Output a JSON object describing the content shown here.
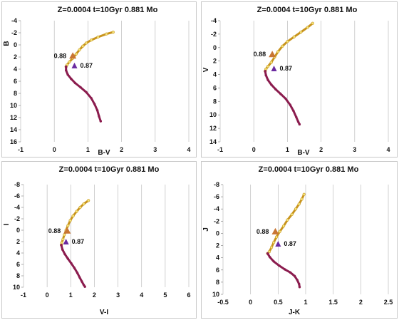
{
  "colors": {
    "upper_branch": "#c8941e",
    "point_fill": "#f3e37a",
    "lower_branch": "#8b1c4e",
    "arrow_088": "#c87533",
    "marker_087": "#6a2aa0",
    "grid": "#bdbdbd"
  },
  "chart_data": [
    {
      "type": "scatter",
      "title": "Z=0.0004   t=10Gyr   0.881 Mo",
      "xlabel": "B-V",
      "ylabel": "B",
      "xlim": [
        -1,
        4
      ],
      "ylim": [
        -4,
        16
      ],
      "y_inverted": true,
      "xticks": [
        "-1",
        "0",
        "1",
        "2",
        "3",
        "4"
      ],
      "yticks": [
        "-4",
        "-2",
        "0",
        "2",
        "4",
        "6",
        "8",
        "10",
        "12",
        "14",
        "16"
      ],
      "grid": true,
      "series": [
        {
          "color": "upper_branch",
          "points": [
            [
              1.75,
              -2.1
            ],
            [
              1.55,
              -1.8
            ],
            [
              1.3,
              -1.3
            ],
            [
              1.1,
              -0.8
            ],
            [
              0.95,
              -0.3
            ],
            [
              0.85,
              0.2
            ],
            [
              0.75,
              0.8
            ],
            [
              0.65,
              1.5
            ],
            [
              0.55,
              2.2
            ],
            [
              0.45,
              2.8
            ],
            [
              0.38,
              3.3
            ],
            [
              0.35,
              3.6
            ]
          ]
        },
        {
          "color": "lower_branch",
          "points": [
            [
              0.35,
              3.6
            ],
            [
              0.35,
              4.2
            ],
            [
              0.4,
              4.9
            ],
            [
              0.5,
              5.6
            ],
            [
              0.62,
              6.3
            ],
            [
              0.78,
              7.0
            ],
            [
              0.95,
              7.8
            ],
            [
              1.1,
              8.8
            ],
            [
              1.2,
              9.8
            ],
            [
              1.28,
              10.8
            ],
            [
              1.33,
              11.8
            ],
            [
              1.38,
              12.6
            ]
          ]
        }
      ],
      "annotations": [
        {
          "label": "0.88",
          "x": 0.55,
          "y": 1.8,
          "marker": "arrow"
        },
        {
          "label": "0.87",
          "x": 0.6,
          "y": 3.4,
          "marker": "triangle"
        }
      ]
    },
    {
      "type": "scatter",
      "title": "Z=0.0004   t=10Gyr   0.881 Mo",
      "xlabel": "B-V",
      "ylabel": "V",
      "xlim": [
        -1,
        4
      ],
      "ylim": [
        -4,
        14
      ],
      "y_inverted": true,
      "xticks": [
        "-1",
        "0",
        "1",
        "2",
        "3",
        "4"
      ],
      "yticks": [
        "-4",
        "-2",
        "0",
        "2",
        "4",
        "6",
        "8",
        "10",
        "12",
        "14"
      ],
      "grid": true,
      "series": [
        {
          "color": "upper_branch",
          "points": [
            [
              1.75,
              -3.6
            ],
            [
              1.6,
              -3.0
            ],
            [
              1.4,
              -2.3
            ],
            [
              1.2,
              -1.6
            ],
            [
              1.0,
              -0.9
            ],
            [
              0.85,
              -0.2
            ],
            [
              0.72,
              0.6
            ],
            [
              0.62,
              1.4
            ],
            [
              0.52,
              2.2
            ],
            [
              0.42,
              2.8
            ],
            [
              0.36,
              3.2
            ],
            [
              0.34,
              3.5
            ]
          ]
        },
        {
          "color": "lower_branch",
          "points": [
            [
              0.34,
              3.5
            ],
            [
              0.36,
              4.1
            ],
            [
              0.42,
              4.8
            ],
            [
              0.52,
              5.5
            ],
            [
              0.65,
              6.2
            ],
            [
              0.8,
              6.9
            ],
            [
              0.95,
              7.6
            ],
            [
              1.08,
              8.5
            ],
            [
              1.18,
              9.4
            ],
            [
              1.26,
              10.3
            ],
            [
              1.32,
              11.0
            ],
            [
              1.36,
              11.4
            ]
          ]
        }
      ],
      "annotations": [
        {
          "label": "0.88",
          "x": 0.55,
          "y": 1.0,
          "marker": "arrow"
        },
        {
          "label": "0.87",
          "x": 0.6,
          "y": 3.1,
          "marker": "triangle"
        }
      ]
    },
    {
      "type": "scatter",
      "title": "Z=0.0004   t=10Gyr   0.881 Mo",
      "xlabel": "V-I",
      "ylabel": "I",
      "xlim": [
        -1,
        6
      ],
      "ylim": [
        -8,
        10
      ],
      "y_inverted": true,
      "xticks": [
        "-1",
        "0",
        "1",
        "2",
        "3",
        "4",
        "5",
        "6"
      ],
      "yticks": [
        "-8",
        "-6",
        "-4",
        "-2",
        "0",
        "2",
        "4",
        "6",
        "8",
        "10"
      ],
      "grid": true,
      "series": [
        {
          "color": "upper_branch",
          "points": [
            [
              1.75,
              -5.2
            ],
            [
              1.55,
              -4.6
            ],
            [
              1.4,
              -4.0
            ],
            [
              1.25,
              -3.3
            ],
            [
              1.1,
              -2.5
            ],
            [
              0.98,
              -1.7
            ],
            [
              0.88,
              -0.8
            ],
            [
              0.8,
              0.0
            ],
            [
              0.73,
              0.8
            ],
            [
              0.67,
              1.6
            ],
            [
              0.62,
              2.2
            ],
            [
              0.6,
              2.6
            ]
          ]
        },
        {
          "color": "lower_branch",
          "points": [
            [
              0.6,
              2.6
            ],
            [
              0.65,
              3.4
            ],
            [
              0.75,
              4.2
            ],
            [
              0.88,
              5.0
            ],
            [
              1.02,
              5.8
            ],
            [
              1.15,
              6.6
            ],
            [
              1.28,
              7.5
            ],
            [
              1.38,
              8.3
            ],
            [
              1.47,
              9.0
            ],
            [
              1.55,
              9.6
            ],
            [
              1.6,
              9.9
            ]
          ]
        }
      ],
      "annotations": [
        {
          "label": "0.88",
          "x": 0.85,
          "y": 0.1,
          "marker": "arrow"
        },
        {
          "label": "0.87",
          "x": 0.8,
          "y": 2.0,
          "marker": "triangle"
        }
      ]
    },
    {
      "type": "scatter",
      "title": "Z=0.0004   t=10Gyr   0.881 Mo",
      "xlabel": "J-K",
      "ylabel": "J",
      "xlim": [
        -0.5,
        2.5
      ],
      "ylim": [
        -8,
        10
      ],
      "y_inverted": true,
      "xticks": [
        "-0.5",
        "0",
        "0.5",
        "1",
        "1.5",
        "2",
        "2.5"
      ],
      "yticks": [
        "-8",
        "-6",
        "-4",
        "-2",
        "0",
        "2",
        "4",
        "6",
        "8",
        "10"
      ],
      "grid": true,
      "series": [
        {
          "color": "upper_branch",
          "points": [
            [
              0.97,
              -6.4
            ],
            [
              0.93,
              -5.6
            ],
            [
              0.88,
              -4.8
            ],
            [
              0.82,
              -4.0
            ],
            [
              0.75,
              -3.1
            ],
            [
              0.67,
              -2.2
            ],
            [
              0.6,
              -1.2
            ],
            [
              0.53,
              -0.3
            ],
            [
              0.47,
              0.6
            ],
            [
              0.42,
              1.5
            ],
            [
              0.38,
              2.3
            ],
            [
              0.34,
              3.0
            ],
            [
              0.31,
              3.3
            ]
          ]
        },
        {
          "color": "lower_branch",
          "points": [
            [
              0.31,
              3.3
            ],
            [
              0.35,
              3.9
            ],
            [
              0.42,
              4.6
            ],
            [
              0.52,
              5.3
            ],
            [
              0.62,
              5.9
            ],
            [
              0.72,
              6.4
            ],
            [
              0.8,
              7.0
            ],
            [
              0.85,
              7.7
            ],
            [
              0.88,
              8.3
            ],
            [
              0.89,
              8.8
            ]
          ]
        }
      ],
      "annotations": [
        {
          "label": "0.88",
          "x": 0.45,
          "y": -0.3,
          "marker": "arrow"
        },
        {
          "label": "0.87",
          "x": 0.5,
          "y": 1.7,
          "marker": "triangle"
        }
      ]
    }
  ]
}
